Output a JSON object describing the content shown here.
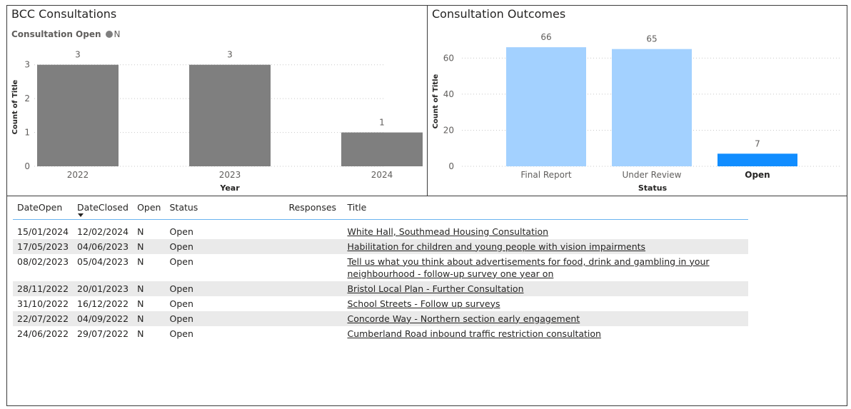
{
  "chart_data": [
    {
      "type": "bar",
      "title": "BCC Consultations",
      "legend": {
        "title": "Consultation Open",
        "items": [
          {
            "name": "N",
            "color": "#7f7f7f"
          }
        ],
        "position": "top-left"
      },
      "categories": [
        "2022",
        "2023",
        "2024"
      ],
      "values": [
        3,
        3,
        1
      ],
      "xlabel": "Year",
      "ylabel": "Count of Title",
      "yticks": [
        "0",
        "1",
        "2",
        "3"
      ],
      "ylim": [
        0,
        3.5
      ],
      "grid": true,
      "bar_color": "#7f7f7f"
    },
    {
      "type": "bar",
      "title": "Consultation Outcomes",
      "categories": [
        "Final Report",
        "Under Review",
        "Open"
      ],
      "values": [
        66,
        65,
        7
      ],
      "xlabel": "Status",
      "ylabel": "Count of Title",
      "yticks": [
        "0",
        "20",
        "40",
        "60"
      ],
      "ylim": [
        0,
        72
      ],
      "grid": true,
      "bar_colors": [
        "#a3d1ff",
        "#a3d1ff",
        "#118dff"
      ],
      "highlighted_category": "Open"
    }
  ],
  "table": {
    "columns": [
      "DateOpen",
      "DateClosed",
      "Open",
      "Status",
      "Responses",
      "Title"
    ],
    "sorted_column": "DateClosed",
    "rows": [
      {
        "date_open": "15/01/2024",
        "date_closed": "12/02/2024",
        "open": "N",
        "status": "Open",
        "responses": "",
        "title": "White Hall, Southmead Housing Consultation"
      },
      {
        "date_open": "17/05/2023",
        "date_closed": "04/06/2023",
        "open": "N",
        "status": "Open",
        "responses": "",
        "title": "Habilitation for children and young people with vision impairments"
      },
      {
        "date_open": "08/02/2023",
        "date_closed": "05/04/2023",
        "open": "N",
        "status": "Open",
        "responses": "",
        "title": "Tell us what you think about advertisements for food, drink and gambling in your neighbourhood - follow-up survey one year on"
      },
      {
        "date_open": "28/11/2022",
        "date_closed": "20/01/2023",
        "open": "N",
        "status": "Open",
        "responses": "",
        "title": "Bristol Local Plan - Further Consultation"
      },
      {
        "date_open": "31/10/2022",
        "date_closed": "16/12/2022",
        "open": "N",
        "status": "Open",
        "responses": "",
        "title": "School Streets - Follow up surveys"
      },
      {
        "date_open": "22/07/2022",
        "date_closed": "04/09/2022",
        "open": "N",
        "status": "Open",
        "responses": "",
        "title": "Concorde Way - Northern section early engagement"
      },
      {
        "date_open": "24/06/2022",
        "date_closed": "29/07/2022",
        "open": "N",
        "status": "Open",
        "responses": "",
        "title": "Cumberland Road inbound traffic restriction consultation"
      }
    ]
  }
}
